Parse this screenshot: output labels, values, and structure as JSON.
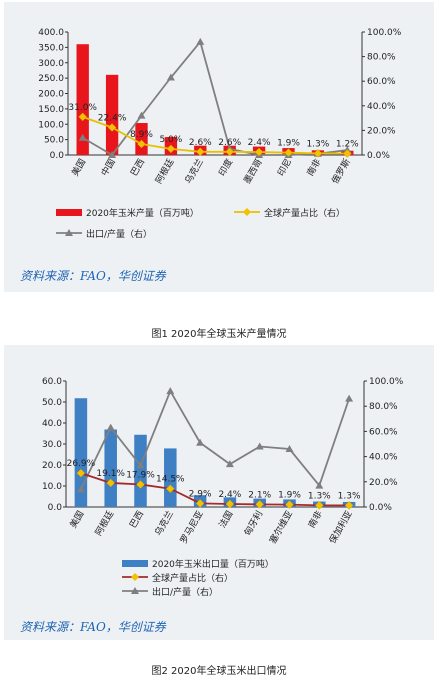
{
  "charts": [
    {
      "type": "bar",
      "categories": [
        "美国",
        "中国",
        "巴西",
        "阿根廷",
        "乌克兰",
        "印度",
        "墨西哥",
        "印尼",
        "南非",
        "俄罗斯"
      ],
      "series": [
        {
          "name": "2020年玉米产量（百万吨）",
          "type": "bar",
          "axis": "left",
          "color": "#e8161c",
          "values": [
            360.3,
            260.7,
            104,
            58.4,
            30.3,
            30.2,
            27.4,
            22.5,
            15.3,
            13.9
          ]
        },
        {
          "name": "全球产量占比（右）",
          "type": "line",
          "axis": "right",
          "color": "#f2c200",
          "marker": "diamond",
          "line_color": "#e8c000",
          "values": [
            0.31,
            0.224,
            0.089,
            0.05,
            0.026,
            0.026,
            0.024,
            0.019,
            0.013,
            0.012
          ],
          "labels": [
            "31.0%",
            "22.4%",
            "8.9%",
            "5.0%",
            "2.6%",
            "2.6%",
            "2.4%",
            "1.9%",
            "1.3%",
            "1.2%"
          ]
        },
        {
          "name": "出口/产量（右）",
          "type": "line",
          "axis": "right",
          "color": "#7f7f7f",
          "marker": "triangle",
          "values": [
            0.14,
            0.0,
            0.32,
            0.63,
            0.92,
            0.05,
            0.0,
            0.0,
            0.01,
            0.04
          ]
        }
      ],
      "ylim_left": [
        0,
        400
      ],
      "yticks_left": [
        "0.0",
        "50.0",
        "100.0",
        "150.0",
        "200.0",
        "250.0",
        "300.0",
        "350.0",
        "400.0"
      ],
      "ylim_right": [
        0,
        1
      ],
      "yticks_right": [
        "0.0%",
        "20.0%",
        "40.0%",
        "60.0%",
        "80.0%",
        "100.0%"
      ],
      "source": "资料来源：FAO，华创证券",
      "caption": "图1 2020年全球玉米产量情况"
    },
    {
      "type": "bar",
      "categories": [
        "美国",
        "阿根廷",
        "巴西",
        "乌克兰",
        "罗马尼亚",
        "法国",
        "匈牙利",
        "塞尔维亚",
        "南非",
        "保加利亚"
      ],
      "series": [
        {
          "name": "2020年玉米出口量（百万吨）",
          "type": "bar",
          "axis": "left",
          "color": "#3f7fc4",
          "values": [
            51.8,
            36.9,
            34.4,
            27.9,
            5.6,
            4.6,
            4.0,
            3.6,
            2.6,
            2.4
          ]
        },
        {
          "name": "全球产量占比（右）",
          "type": "line",
          "axis": "right",
          "color": "#f2c200",
          "marker": "diamond",
          "line_color": "#a52a2a",
          "values": [
            0.269,
            0.191,
            0.179,
            0.145,
            0.029,
            0.024,
            0.021,
            0.019,
            0.013,
            0.013
          ],
          "labels": [
            "26.9%",
            "19.1%",
            "17.9%",
            "14.5%",
            "2.9%",
            "2.4%",
            "2.1%",
            "1.9%",
            "1.3%",
            "1.3%"
          ]
        },
        {
          "name": "出口/产量（右）",
          "type": "line",
          "axis": "right",
          "color": "#7f7f7f",
          "marker": "triangle",
          "values": [
            0.14,
            0.63,
            0.33,
            0.92,
            0.51,
            0.34,
            0.48,
            0.46,
            0.17,
            0.86
          ]
        }
      ],
      "ylim_left": [
        0,
        60
      ],
      "yticks_left": [
        "0.0",
        "10.0",
        "20.0",
        "30.0",
        "40.0",
        "50.0",
        "60.0"
      ],
      "ylim_right": [
        0,
        1
      ],
      "yticks_right": [
        "0.0%",
        "20.0%",
        "40.0%",
        "60.0%",
        "80.0%",
        "100.0%"
      ],
      "source": "资料来源：FAO，华创证券",
      "caption": "图2 2020年全球玉米出口情况"
    }
  ]
}
